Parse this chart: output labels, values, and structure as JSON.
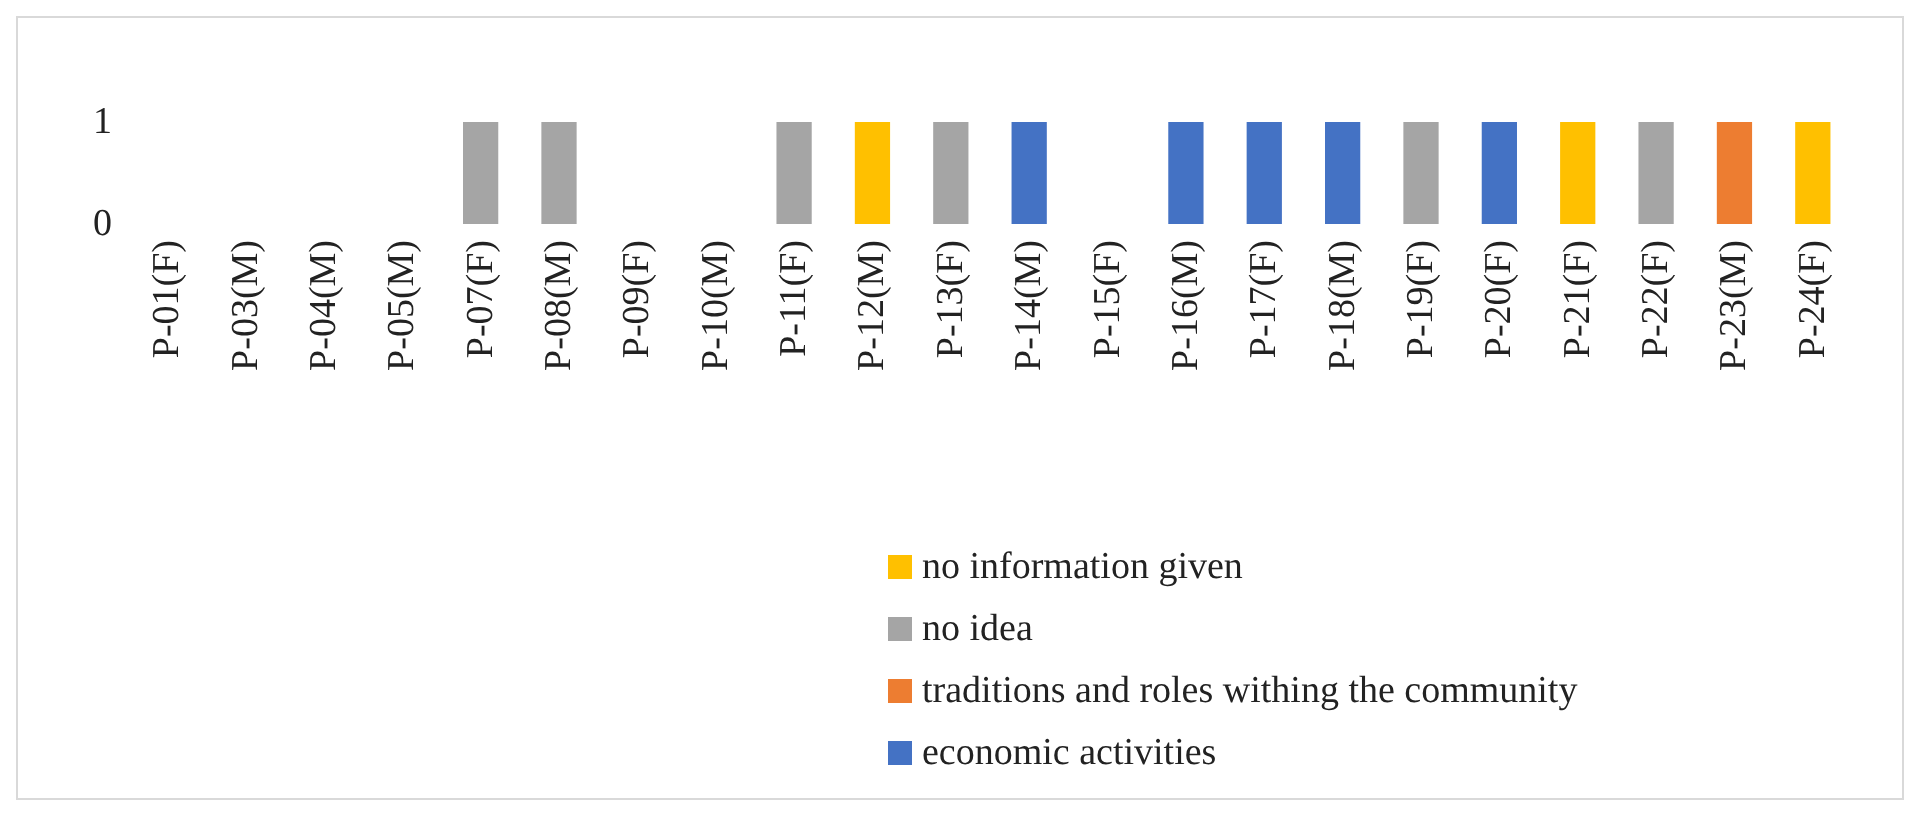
{
  "chart_data": {
    "type": "bar",
    "stacked": true,
    "categories": [
      "P-01(F)",
      "P-03(M)",
      "P-04(M)",
      "P-05(M)",
      "P-07(F)",
      "P-08(M)",
      "P-09(F)",
      "P-10(M)",
      "P-11(F)",
      "P-12(M)",
      "P-13(F)",
      "P-14(M)",
      "P-15(F)",
      "P-16(M)",
      "P-17(F)",
      "P-18(M)",
      "P-19(F)",
      "P-20(F)",
      "P-21(F)",
      "P-22(F)",
      "P-23(M)",
      "P-24(F)"
    ],
    "series": [
      {
        "name": "economic activities",
        "color": "#4472c4",
        "values": [
          0,
          0,
          0,
          0,
          0,
          0,
          0,
          0,
          0,
          0,
          0,
          1,
          0,
          1,
          1,
          1,
          0,
          1,
          0,
          0,
          0,
          0
        ]
      },
      {
        "name": "traditions and roles withing the community",
        "color": "#ed7d31",
        "values": [
          0,
          0,
          0,
          0,
          0,
          0,
          0,
          0,
          0,
          0,
          0,
          0,
          0,
          0,
          0,
          0,
          0,
          0,
          0,
          0,
          1,
          0
        ]
      },
      {
        "name": "no idea",
        "color": "#a5a5a5",
        "values": [
          0,
          0,
          0,
          0,
          1,
          1,
          0,
          0,
          1,
          0,
          1,
          0,
          0,
          0,
          0,
          0,
          1,
          0,
          0,
          1,
          0,
          0
        ]
      },
      {
        "name": "no information given",
        "color": "#ffc000",
        "values": [
          0,
          0,
          0,
          0,
          0,
          0,
          0,
          0,
          0,
          1,
          0,
          0,
          0,
          0,
          0,
          0,
          0,
          0,
          1,
          0,
          0,
          1
        ]
      }
    ],
    "ylim": [
      0,
      1
    ],
    "yticks": [
      0,
      1
    ],
    "grid": false,
    "legend": "bottom"
  }
}
